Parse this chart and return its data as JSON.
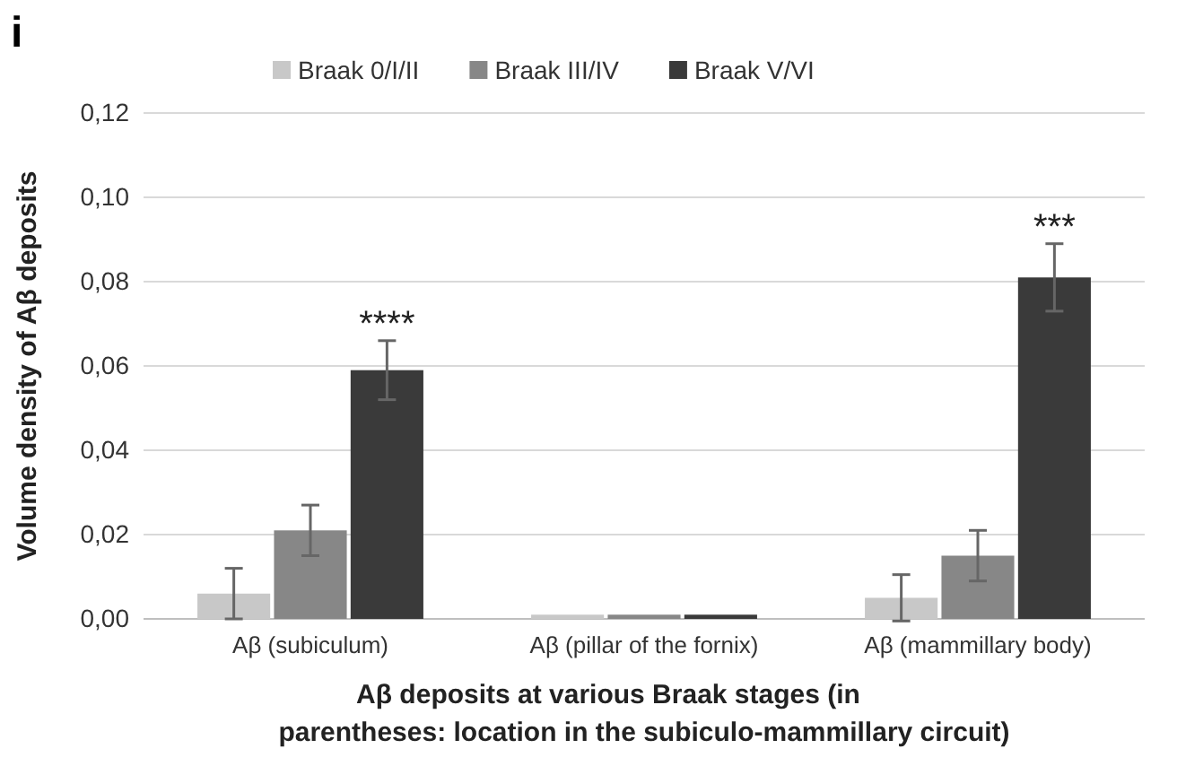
{
  "chart_data": {
    "type": "bar",
    "title": "i",
    "xlabel": "Aβ deposits at various Braak stages (in\nparentheses: location in the subiculo-mammillary circuit)",
    "ylabel": "Volume density of Aβ deposits",
    "categories": [
      "Aβ (subiculum)",
      "Aβ (pillar of the fornix)",
      "Aβ (mammillary body)"
    ],
    "series": [
      {
        "name": "Braak 0/I/II",
        "color": "#c8c8c8",
        "values": [
          0.006,
          0.001,
          0.005
        ],
        "errors": [
          0.006,
          null,
          0.0055
        ]
      },
      {
        "name": "Braak III/IV",
        "color": "#878787",
        "values": [
          0.021,
          0.001,
          0.015
        ],
        "errors": [
          0.006,
          null,
          0.006
        ]
      },
      {
        "name": "Braak V/VI",
        "color": "#3a3a3a",
        "values": [
          0.059,
          0.001,
          0.081
        ],
        "errors": [
          0.007,
          null,
          0.008
        ]
      }
    ],
    "ylim": [
      0,
      0.12
    ],
    "yticks": [
      {
        "value": 0,
        "label": "0,00"
      },
      {
        "value": 0.02,
        "label": "0,02"
      },
      {
        "value": 0.04,
        "label": "0,04"
      },
      {
        "value": 0.06,
        "label": "0,06"
      },
      {
        "value": 0.08,
        "label": "0,08"
      },
      {
        "value": 0.1,
        "label": "0,10"
      },
      {
        "value": 0.12,
        "label": "0,12"
      }
    ],
    "grid": "y",
    "legend": "top",
    "annotations": [
      "****",
      "***"
    ]
  }
}
